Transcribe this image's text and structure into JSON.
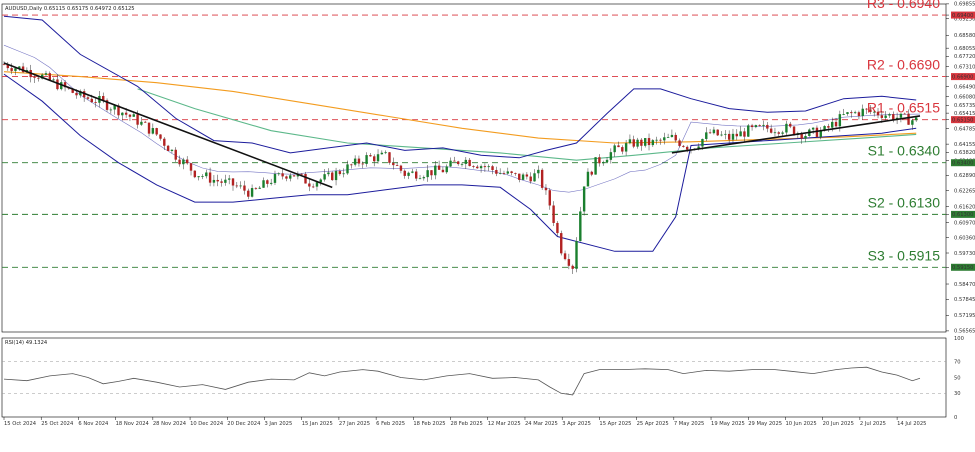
{
  "header": {
    "symbol_line": "AUDUSD,Daily  0.65115 0.65175 0.64972 0.65125",
    "rsi_line": "RSI(14) 49.1324"
  },
  "colors": {
    "resistance": "#d9363e",
    "support": "#2e7d32",
    "bollinger": "#1c1c9c",
    "ma_orange": "#f39c1f",
    "ma_green": "#5cb88a",
    "trendline": "#111111",
    "bull": "#1a7f2e",
    "bear": "#b22222",
    "rsi": "#555555"
  },
  "chart_data": [
    {
      "type": "candlestick",
      "title": "AUDUSD,Daily",
      "ohlc_last": {
        "open": 0.65115,
        "high": 0.65175,
        "low": 0.64972,
        "close": 0.65125
      },
      "ylim": [
        0.5652,
        0.6985
      ],
      "y_ticks": [
        "0.69855",
        "0.69400",
        "0.69250",
        "0.68580",
        "0.68055",
        "0.67720",
        "0.67310",
        "0.66900",
        "0.66490",
        "0.66080",
        "0.65735",
        "0.65415",
        "0.65150",
        "0.64785",
        "0.64155",
        "0.63820",
        "0.63480",
        "0.62890",
        "0.62265",
        "0.61620",
        "0.61300",
        "0.60970",
        "0.60360",
        "0.59730",
        "0.59150",
        "0.58470",
        "0.57845",
        "0.57195",
        "0.56565"
      ],
      "x_ticks": [
        "15 Oct 2024",
        "25 Oct 2024",
        "6 Nov 2024",
        "18 Nov 2024",
        "28 Nov 2024",
        "10 Dec 2024",
        "20 Dec 2024",
        "3 Jan 2025",
        "15 Jan 2025",
        "27 Jan 2025",
        "6 Feb 2025",
        "18 Feb 2025",
        "28 Feb 2025",
        "12 Mar 2025",
        "24 Mar 2025",
        "3 Apr 2025",
        "15 Apr 2025",
        "25 Apr 2025",
        "7 May 2025",
        "19 May 2025",
        "29 May 2025",
        "10 Jun 2025",
        "20 Jun 2025",
        "2 Jul 2025",
        "14 Jul 2025"
      ],
      "levels": [
        {
          "label": "R3 - 0.6940",
          "value": 0.694,
          "kind": "resistance",
          "tag": "0.69400"
        },
        {
          "label": "R2 - 0.6690",
          "value": 0.669,
          "kind": "resistance",
          "tag": "0.66900"
        },
        {
          "label": "R1 - 0.6515",
          "value": 0.6515,
          "kind": "resistance",
          "tag": "0.65150"
        },
        {
          "label": "S1 - 0.6340",
          "value": 0.634,
          "kind": "support",
          "tag": "0.63400"
        },
        {
          "label": "S2 - 0.6130",
          "value": 0.613,
          "kind": "support",
          "tag": "0.61300"
        },
        {
          "label": "S3 - 0.5915",
          "value": 0.5915,
          "kind": "support",
          "tag": "0.59150"
        }
      ],
      "close_path": [
        [
          0,
          0.674
        ],
        [
          5,
          0.672
        ],
        [
          10,
          0.669
        ],
        [
          15,
          0.665
        ],
        [
          20,
          0.661
        ],
        [
          25,
          0.659
        ],
        [
          30,
          0.6555
        ],
        [
          35,
          0.651
        ],
        [
          40,
          0.6455
        ],
        [
          45,
          0.637
        ],
        [
          50,
          0.63
        ],
        [
          55,
          0.627
        ],
        [
          60,
          0.625
        ],
        [
          65,
          0.6215
        ],
        [
          70,
          0.627
        ],
        [
          75,
          0.63
        ],
        [
          80,
          0.626
        ],
        [
          85,
          0.628
        ],
        [
          90,
          0.632
        ],
        [
          95,
          0.636
        ],
        [
          100,
          0.6365
        ],
        [
          105,
          0.6295
        ],
        [
          110,
          0.63
        ],
        [
          115,
          0.631
        ],
        [
          120,
          0.6355
        ],
        [
          125,
          0.633
        ],
        [
          130,
          0.63
        ],
        [
          135,
          0.628
        ],
        [
          140,
          0.629
        ],
        [
          143,
          0.617
        ],
        [
          146,
          0.599
        ],
        [
          149,
          0.592
        ],
        [
          152,
          0.626
        ],
        [
          155,
          0.634
        ],
        [
          160,
          0.639
        ],
        [
          165,
          0.642
        ],
        [
          170,
          0.642
        ],
        [
          175,
          0.644
        ],
        [
          180,
          0.64
        ],
        [
          185,
          0.646
        ],
        [
          190,
          0.644
        ],
        [
          195,
          0.647
        ],
        [
          200,
          0.648
        ],
        [
          205,
          0.648
        ],
        [
          210,
          0.6455
        ],
        [
          215,
          0.647
        ],
        [
          220,
          0.653
        ],
        [
          225,
          0.655
        ],
        [
          230,
          0.654
        ],
        [
          235,
          0.652
        ],
        [
          239,
          0.6512
        ]
      ],
      "bb_upper": [
        [
          0,
          0.6935
        ],
        [
          10,
          0.692
        ],
        [
          20,
          0.678
        ],
        [
          35,
          0.665
        ],
        [
          45,
          0.652
        ],
        [
          55,
          0.643
        ],
        [
          65,
          0.642
        ],
        [
          75,
          0.638
        ],
        [
          85,
          0.64
        ],
        [
          95,
          0.642
        ],
        [
          105,
          0.639
        ],
        [
          115,
          0.64
        ],
        [
          125,
          0.637
        ],
        [
          135,
          0.636
        ],
        [
          142,
          0.639
        ],
        [
          150,
          0.642
        ],
        [
          158,
          0.654
        ],
        [
          165,
          0.664
        ],
        [
          172,
          0.664
        ],
        [
          180,
          0.66
        ],
        [
          190,
          0.656
        ],
        [
          200,
          0.6545
        ],
        [
          210,
          0.655
        ],
        [
          220,
          0.66
        ],
        [
          230,
          0.661
        ],
        [
          239,
          0.6595
        ]
      ],
      "bb_lower": [
        [
          0,
          0.67
        ],
        [
          10,
          0.659
        ],
        [
          20,
          0.645
        ],
        [
          30,
          0.634
        ],
        [
          40,
          0.625
        ],
        [
          50,
          0.618
        ],
        [
          60,
          0.618
        ],
        [
          70,
          0.6195
        ],
        [
          80,
          0.621
        ],
        [
          90,
          0.621
        ],
        [
          100,
          0.623
        ],
        [
          110,
          0.625
        ],
        [
          120,
          0.625
        ],
        [
          130,
          0.624
        ],
        [
          138,
          0.615
        ],
        [
          145,
          0.604
        ],
        [
          160,
          0.598
        ],
        [
          170,
          0.598
        ],
        [
          176,
          0.612
        ],
        [
          180,
          0.641
        ],
        [
          190,
          0.642
        ],
        [
          200,
          0.643
        ],
        [
          210,
          0.644
        ],
        [
          220,
          0.645
        ],
        [
          230,
          0.646
        ],
        [
          239,
          0.648
        ]
      ],
      "ma_orange": [
        [
          0,
          0.671
        ],
        [
          20,
          0.669
        ],
        [
          40,
          0.6665
        ],
        [
          60,
          0.663
        ],
        [
          80,
          0.658
        ],
        [
          100,
          0.653
        ],
        [
          120,
          0.648
        ],
        [
          140,
          0.644
        ],
        [
          160,
          0.642
        ],
        [
          180,
          0.6425
        ],
        [
          200,
          0.6435
        ],
        [
          220,
          0.6445
        ],
        [
          239,
          0.646
        ]
      ],
      "ma_green": [
        [
          35,
          0.664
        ],
        [
          50,
          0.656
        ],
        [
          70,
          0.647
        ],
        [
          90,
          0.642
        ],
        [
          110,
          0.64
        ],
        [
          130,
          0.638
        ],
        [
          150,
          0.635
        ],
        [
          165,
          0.637
        ],
        [
          185,
          0.64
        ],
        [
          205,
          0.642
        ],
        [
          225,
          0.644
        ],
        [
          239,
          0.6455
        ]
      ],
      "trendlines": [
        {
          "from": [
            0,
            0.6745
          ],
          "to": [
            86,
            0.624
          ]
        },
        {
          "from": [
            175,
            0.638
          ],
          "to": [
            240,
            0.653
          ]
        }
      ]
    },
    {
      "type": "line",
      "title": "RSI(14) 49.1324",
      "ylim": [
        0,
        100
      ],
      "y_ticks": [
        "100",
        "70",
        "50",
        "30",
        "0"
      ],
      "series": [
        {
          "name": "RSI(14)",
          "values": [
            [
              0,
              48
            ],
            [
              6,
              46
            ],
            [
              12,
              52
            ],
            [
              18,
              55
            ],
            [
              22,
              50
            ],
            [
              26,
              42
            ],
            [
              30,
              45
            ],
            [
              34,
              49
            ],
            [
              40,
              44
            ],
            [
              46,
              38
            ],
            [
              52,
              41
            ],
            [
              58,
              35
            ],
            [
              64,
              44
            ],
            [
              70,
              48
            ],
            [
              76,
              47
            ],
            [
              80,
              56
            ],
            [
              84,
              52
            ],
            [
              88,
              57
            ],
            [
              94,
              60
            ],
            [
              98,
              58
            ],
            [
              104,
              50
            ],
            [
              110,
              47
            ],
            [
              116,
              52
            ],
            [
              122,
              55
            ],
            [
              128,
              49
            ],
            [
              134,
              50
            ],
            [
              140,
              47
            ],
            [
              143,
              38
            ],
            [
              146,
              30
            ],
            [
              149,
              28
            ],
            [
              152,
              55
            ],
            [
              156,
              60
            ],
            [
              162,
              60
            ],
            [
              168,
              61
            ],
            [
              174,
              60
            ],
            [
              178,
              55
            ],
            [
              184,
              59
            ],
            [
              190,
              58
            ],
            [
              196,
              60
            ],
            [
              202,
              60
            ],
            [
              206,
              58
            ],
            [
              212,
              55
            ],
            [
              218,
              60
            ],
            [
              222,
              62
            ],
            [
              226,
              63
            ],
            [
              230,
              57
            ],
            [
              234,
              53
            ],
            [
              238,
              46
            ],
            [
              240,
              49
            ]
          ]
        }
      ]
    }
  ]
}
